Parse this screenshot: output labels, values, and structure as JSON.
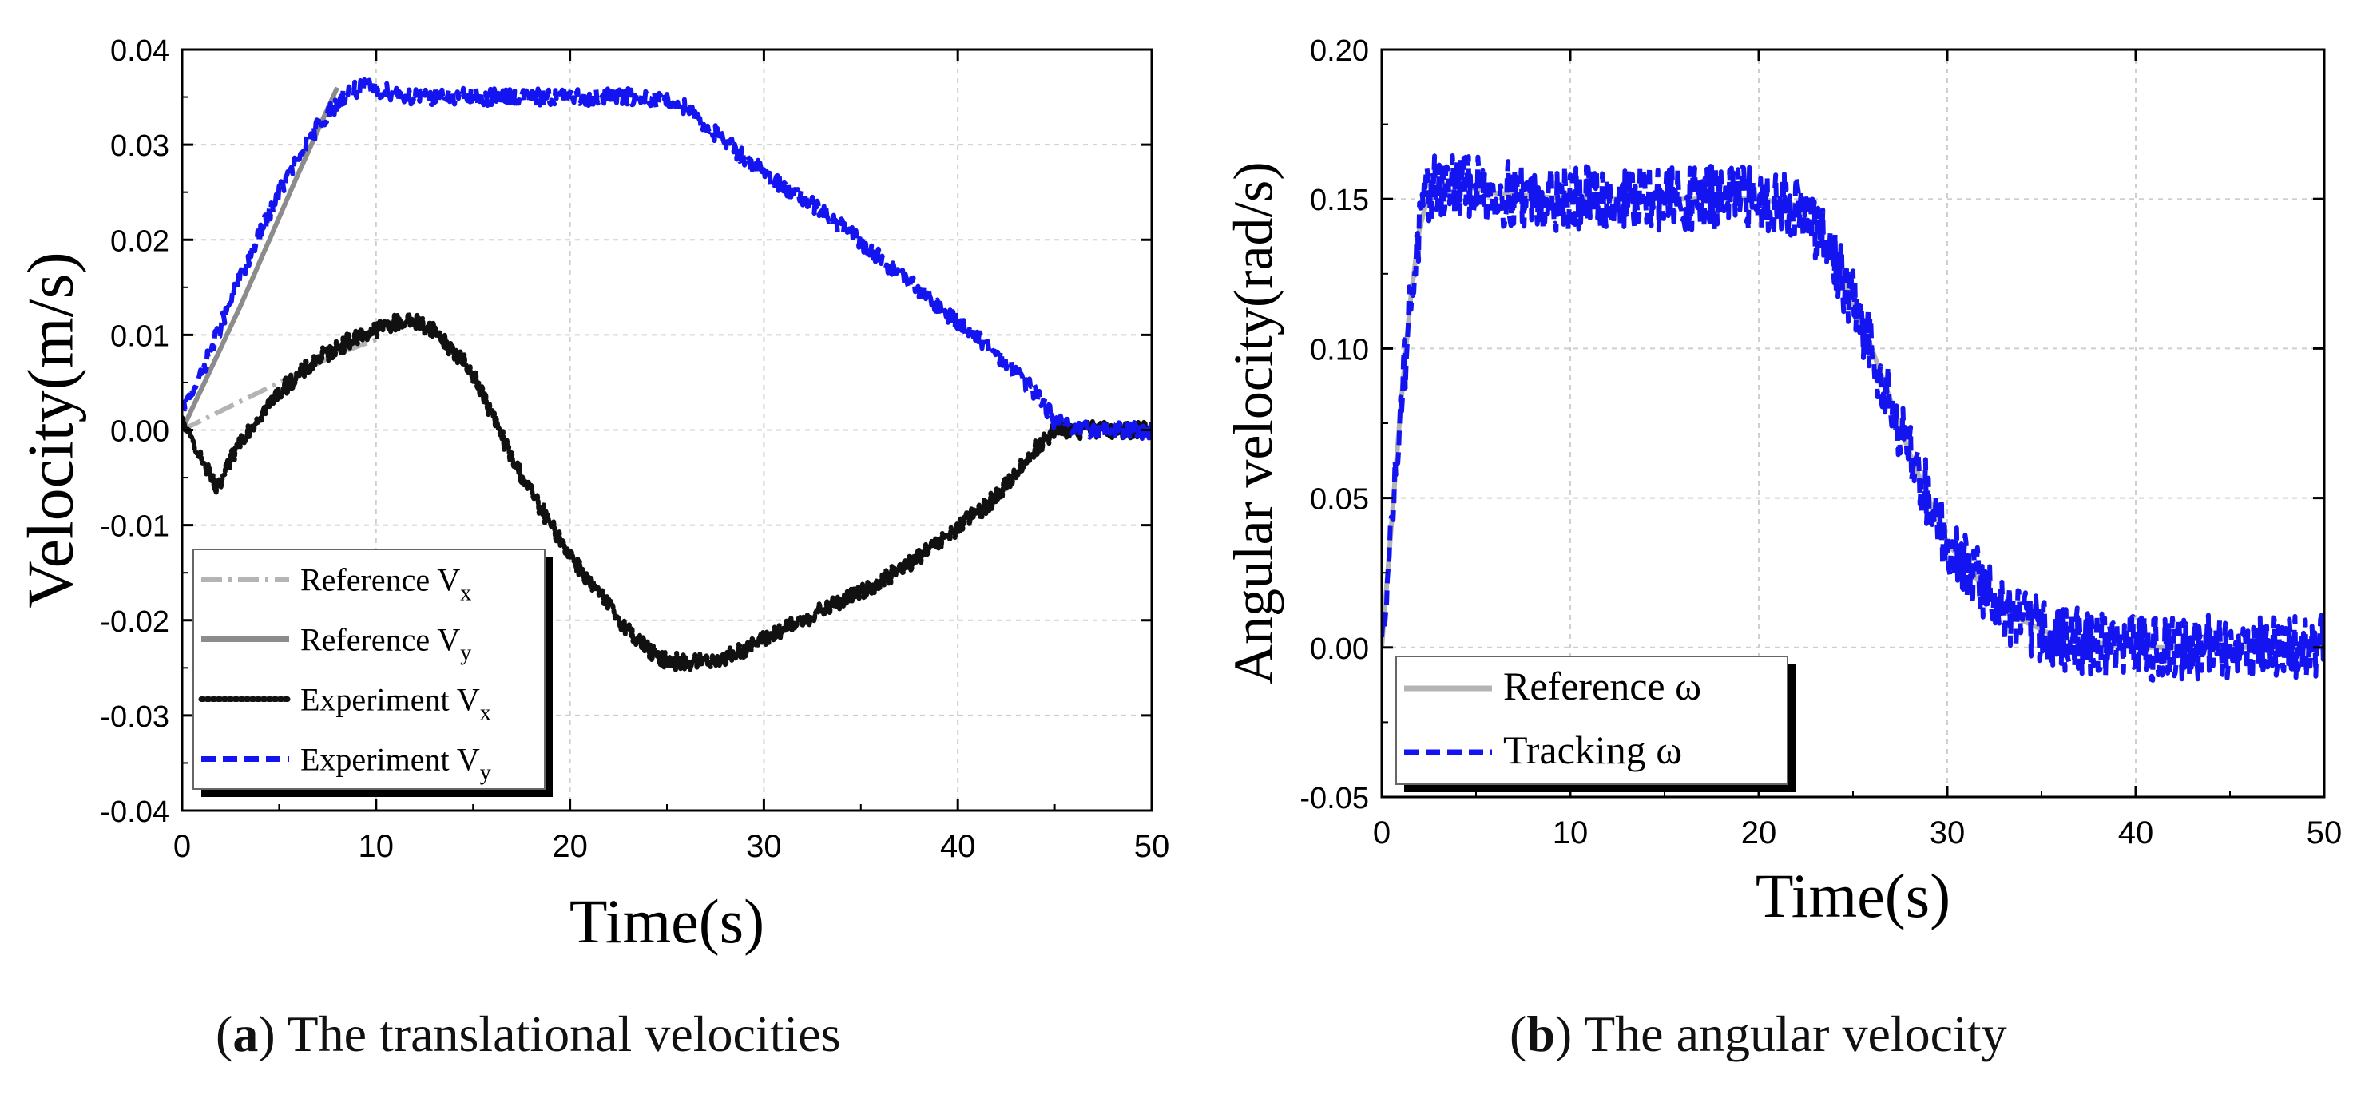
{
  "colors": {
    "blue": "#1414f0",
    "black": "#111111",
    "ref_gray": "#b4b4b4",
    "ref_gray_dark": "#8c8c8c",
    "grid": "#cfcfcf",
    "axis": "#000000"
  },
  "chart_data": [
    {
      "type": "line",
      "id": "a",
      "title": "",
      "xlabel": "Time(s)",
      "ylabel": "Velocity(m/s)",
      "xlim": [
        0,
        50
      ],
      "ylim": [
        -0.04,
        0.04
      ],
      "xticks": [
        0,
        10,
        20,
        30,
        40,
        50
      ],
      "yticks": [
        -0.04,
        -0.03,
        -0.02,
        -0.01,
        0.0,
        0.01,
        0.02,
        0.03,
        0.04
      ],
      "ytick_labels": [
        "-0.04",
        "-0.03",
        "-0.02",
        "-0.01",
        "0.00",
        "0.01",
        "0.02",
        "0.03",
        "0.04"
      ],
      "xtick_labels": [
        "0",
        "10",
        "20",
        "30",
        "40",
        "50"
      ],
      "grid": true,
      "legend": "bottom-left",
      "series": [
        {
          "name": "Reference Vx",
          "label_main": "Reference V",
          "label_sub": "x",
          "style": "dashdot",
          "color": "#b4b4b4",
          "noise": 0,
          "x": [
            0,
            2,
            5,
            8,
            10
          ],
          "y": [
            0.0,
            0.002,
            0.005,
            0.008,
            0.0095
          ]
        },
        {
          "name": "Reference Vy",
          "label_main": "Reference V",
          "label_sub": "y",
          "style": "solid",
          "color": "#8c8c8c",
          "noise": 0,
          "x": [
            0,
            3,
            6,
            8
          ],
          "y": [
            0.0,
            0.013,
            0.027,
            0.036
          ]
        },
        {
          "name": "Experiment Vx",
          "label_main": "Experiment V",
          "label_sub": "x",
          "style": "dotted",
          "color": "#111111",
          "noise": 0.0009,
          "x": [
            0,
            1,
            1.8,
            3,
            5,
            7,
            9,
            11,
            12,
            13,
            15,
            17,
            19,
            21,
            23,
            24.5,
            26,
            28,
            30,
            33,
            36,
            39,
            42,
            44,
            45,
            46,
            48,
            50
          ],
          "y": [
            0.001,
            -0.003,
            -0.0065,
            -0.001,
            0.004,
            0.0075,
            0.0098,
            0.0113,
            0.0115,
            0.0105,
            0.006,
            -0.003,
            -0.01,
            -0.016,
            -0.021,
            -0.024,
            -0.0245,
            -0.024,
            -0.022,
            -0.019,
            -0.016,
            -0.012,
            -0.007,
            -0.002,
            0.0,
            0.0,
            0.0,
            0.0
          ]
        },
        {
          "name": "Experiment Vy",
          "label_main": "Experiment V",
          "label_sub": "y",
          "style": "dashed",
          "color": "#1414f0",
          "noise": 0.0009,
          "x": [
            0,
            1,
            3,
            5,
            7,
            8.5,
            9.5,
            12,
            15,
            20,
            24,
            26,
            27,
            30,
            33,
            36,
            39,
            42,
            44,
            45,
            46,
            48,
            50
          ],
          "y": [
            0.002,
            0.006,
            0.016,
            0.025,
            0.032,
            0.0355,
            0.036,
            0.035,
            0.035,
            0.035,
            0.035,
            0.034,
            0.032,
            0.027,
            0.023,
            0.018,
            0.013,
            0.008,
            0.004,
            0.001,
            0.0,
            0.0,
            0.0
          ]
        }
      ]
    },
    {
      "type": "line",
      "id": "b",
      "title": "",
      "xlabel": "Time(s)",
      "ylabel": "Angular velocity(rad/s)",
      "xlim": [
        0,
        50
      ],
      "ylim": [
        -0.05,
        0.2
      ],
      "xticks": [
        0,
        10,
        20,
        30,
        40,
        50
      ],
      "yticks": [
        -0.05,
        0.0,
        0.05,
        0.1,
        0.15,
        0.2
      ],
      "ytick_labels": [
        "-0.05",
        "0.00",
        "0.05",
        "0.10",
        "0.15",
        "0.20"
      ],
      "xtick_labels": [
        "0",
        "10",
        "20",
        "30",
        "40",
        "50"
      ],
      "grid": true,
      "legend": "bottom-left",
      "series": [
        {
          "name": "Reference ω",
          "label_main": "Reference ",
          "label_sym": "ω",
          "style": "solid",
          "color": "#b4b4b4",
          "noise": 0,
          "x": [
            0,
            0.5,
            1,
            1.5,
            2,
            2.5,
            3,
            4,
            6,
            10,
            15,
            20,
            22,
            24,
            26,
            28,
            30,
            33,
            36,
            40,
            45,
            50
          ],
          "y": [
            0.0,
            0.04,
            0.08,
            0.115,
            0.14,
            0.152,
            0.155,
            0.155,
            0.152,
            0.15,
            0.15,
            0.15,
            0.148,
            0.13,
            0.1,
            0.065,
            0.035,
            0.012,
            0.003,
            0.0,
            0.0,
            0.0
          ]
        },
        {
          "name": "Tracking ω",
          "label_main": "Tracking  ",
          "label_sym": "ω",
          "style": "dashed",
          "color": "#1414f0",
          "noise": 0.011,
          "x": [
            0,
            0.5,
            1,
            1.5,
            2,
            2.5,
            3,
            4,
            6,
            10,
            15,
            20,
            22,
            24,
            26,
            28,
            30,
            33,
            36,
            40,
            45,
            50
          ],
          "y": [
            0.0,
            0.04,
            0.08,
            0.115,
            0.14,
            0.152,
            0.155,
            0.155,
            0.152,
            0.15,
            0.15,
            0.15,
            0.148,
            0.13,
            0.1,
            0.065,
            0.035,
            0.012,
            0.003,
            0.0,
            0.0,
            0.0
          ]
        }
      ]
    }
  ],
  "captions": [
    {
      "letter": "a",
      "text": " The translational velocities"
    },
    {
      "letter": "b",
      "text": " The angular velocity"
    }
  ]
}
